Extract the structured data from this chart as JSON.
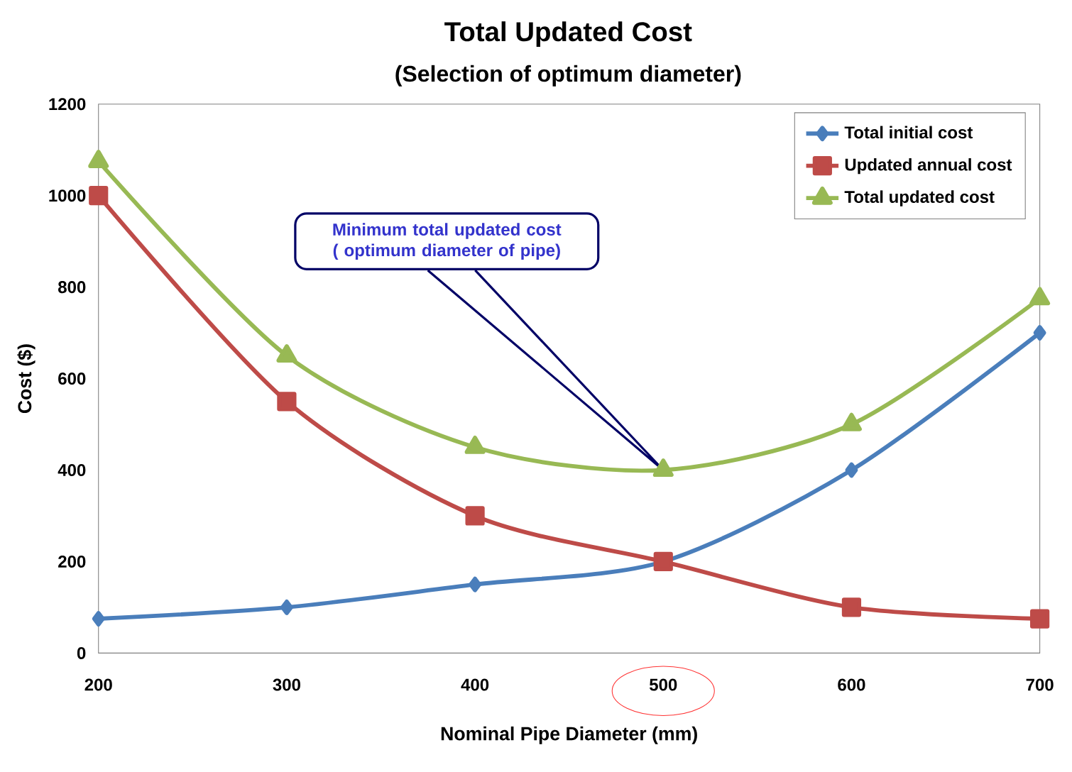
{
  "chart_data": {
    "type": "line",
    "title": "Total Updated Cost",
    "subtitle": "(Selection of optimum diameter)",
    "xlabel": "Nominal Pipe Diameter (mm)",
    "ylabel": "Cost ($)",
    "x": [
      200,
      300,
      400,
      500,
      600,
      700
    ],
    "series": [
      {
        "name": "Total initial cost",
        "color": "#4a7ebb",
        "marker": "diamond",
        "values": [
          75,
          100,
          150,
          200,
          400,
          700
        ]
      },
      {
        "name": "Updated annual cost",
        "color": "#be4b48",
        "marker": "square",
        "values": [
          1000,
          550,
          300,
          200,
          100,
          75
        ]
      },
      {
        "name": "Total updated cost",
        "color": "#98b954",
        "marker": "triangle",
        "values": [
          1075,
          650,
          450,
          400,
          500,
          775
        ]
      }
    ],
    "xlim": [
      200,
      700
    ],
    "xticks": [
      200,
      300,
      400,
      500,
      600,
      700
    ],
    "ylim": [
      0,
      1200
    ],
    "yticks": [
      0,
      200,
      400,
      600,
      800,
      1000,
      1200
    ],
    "grid": false,
    "legend": "top right",
    "annotations": [
      "Minimum total updated cost ( optimum diameter of pipe)"
    ]
  }
}
